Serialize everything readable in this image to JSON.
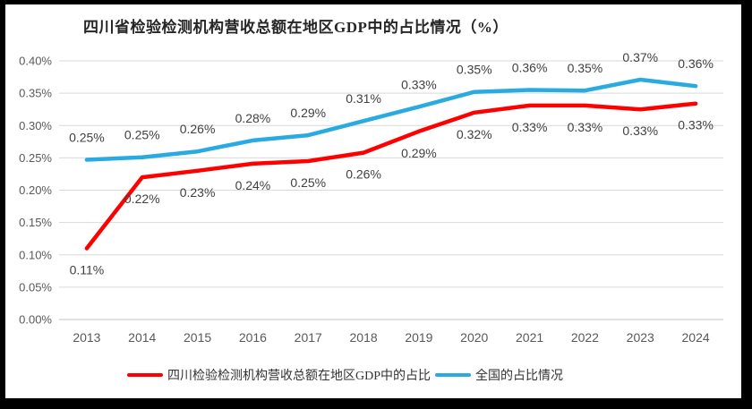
{
  "chart_data": {
    "type": "line",
    "title": "四川省检验检测机构营收总额在地区GDP中的占比情况（%）",
    "categories": [
      "2013",
      "2014",
      "2015",
      "2016",
      "2017",
      "2018",
      "2019",
      "2020",
      "2021",
      "2022",
      "2023",
      "2024"
    ],
    "series": [
      {
        "name": "四川检验检测机构营收总额在地区GDP中的占比",
        "color": "#FF0000",
        "values": [
          0.11,
          0.22,
          0.23,
          0.24,
          0.25,
          0.26,
          0.29,
          0.32,
          0.33,
          0.33,
          0.33,
          0.33
        ],
        "labels": [
          "0.11%",
          "0.22%",
          "0.23%",
          "0.24%",
          "0.25%",
          "0.26%",
          "0.29%",
          "0.32%",
          "0.33%",
          "0.33%",
          "0.33%",
          "0.33%"
        ],
        "label_position": "below",
        "plot_values_estimated": [
          0.11,
          0.22,
          0.23,
          0.241,
          0.245,
          0.258,
          0.291,
          0.32,
          0.331,
          0.331,
          0.325,
          0.334
        ]
      },
      {
        "name": "全国的占比情况",
        "color": "#29ABE2",
        "values": [
          0.25,
          0.25,
          0.26,
          0.28,
          0.29,
          0.31,
          0.33,
          0.35,
          0.36,
          0.35,
          0.37,
          0.36
        ],
        "labels": [
          "0.25%",
          "0.25%",
          "0.26%",
          "0.28%",
          "0.29%",
          "0.31%",
          "0.33%",
          "0.35%",
          "0.36%",
          "0.35%",
          "0.37%",
          "0.36%"
        ],
        "label_position": "above",
        "plot_values_estimated": [
          0.247,
          0.251,
          0.26,
          0.277,
          0.285,
          0.307,
          0.329,
          0.352,
          0.355,
          0.354,
          0.371,
          0.361
        ]
      }
    ],
    "xlabel": "",
    "ylabel": "",
    "ylim": [
      0,
      0.4
    ],
    "ytick_step": 0.05,
    "ytick_labels": [
      "0.00%",
      "0.05%",
      "0.10%",
      "0.15%",
      "0.20%",
      "0.25%",
      "0.30%",
      "0.35%",
      "0.40%"
    ],
    "grid": "horizontal",
    "legend_position": "bottom",
    "colors": {
      "gridline": "#D9D9D9",
      "axis_line": "#C3C3C3",
      "tick_text": "#595959",
      "data_label_text": "#404040",
      "frame": "#000000",
      "background": "#FFFFFF"
    }
  }
}
